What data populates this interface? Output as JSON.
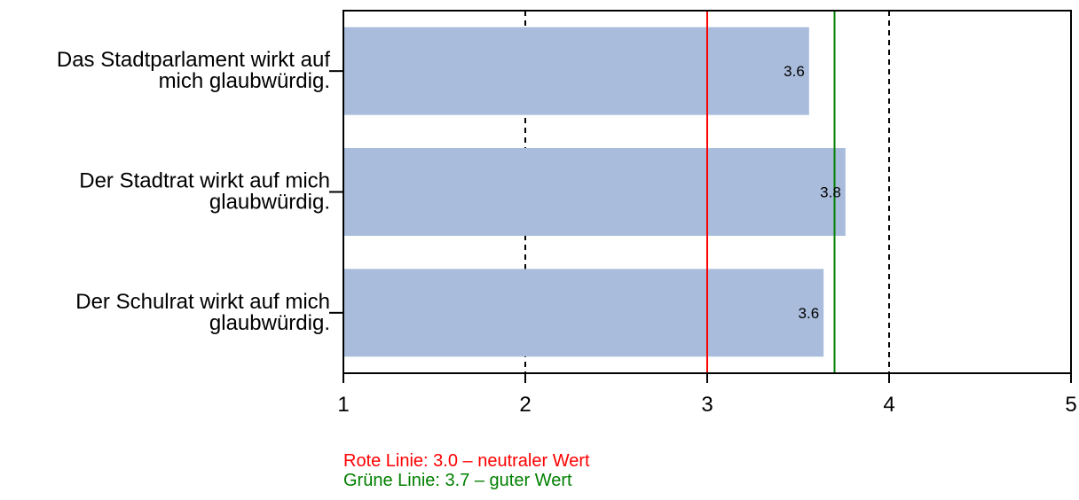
{
  "chart_data": {
    "type": "bar",
    "orientation": "horizontal",
    "categories": [
      [
        "Das Stadtparlament wirkt auf",
        "mich glaubwürdig."
      ],
      [
        "Der Stadtrat wirkt auf mich",
        "glaubwürdig."
      ],
      [
        "Der Schulrat wirkt auf mich",
        "glaubwürdig."
      ]
    ],
    "values": [
      3.56,
      3.76,
      3.64
    ],
    "value_labels": [
      "3.6",
      "3.8",
      "3.6"
    ],
    "xlim": [
      1,
      5
    ],
    "xticks": [
      "1",
      "2",
      "3",
      "4",
      "5"
    ],
    "grid": "vertical dashed at 2 and 4",
    "bar_color": "#a9bcdc",
    "reference_lines": [
      {
        "value": 3.0,
        "color": "#ff0000"
      },
      {
        "value": 3.7,
        "color": "#008000"
      }
    ]
  },
  "notes": {
    "red": "Rote Linie: 3.0 – neutraler Wert",
    "green": "Grüne Linie: 3.7 – guter Wert"
  }
}
